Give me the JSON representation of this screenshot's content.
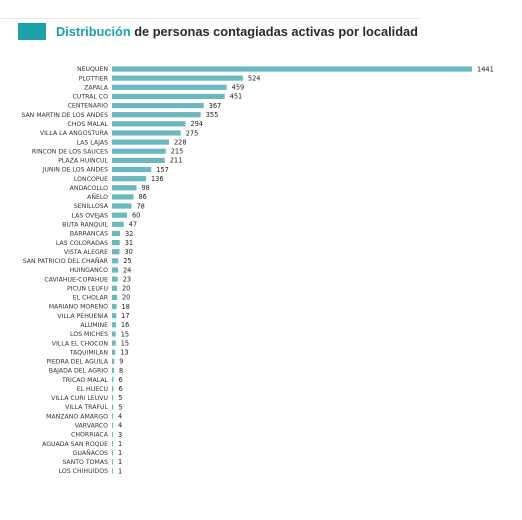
{
  "header": {
    "title_highlight": "Distribución",
    "title_rest": " de personas contagiadas activas por localidad"
  },
  "colors": {
    "accent": "#1ba1a7",
    "bar": "#6bb9be",
    "label": "#333333",
    "value": "#222222",
    "title_text": "#2b2b2b"
  },
  "chart_data": {
    "type": "bar",
    "orientation": "horizontal",
    "title": "Distribución de personas contagiadas activas por localidad",
    "xlabel": "",
    "ylabel": "",
    "grid": false,
    "legend": "none",
    "xlim": [
      0,
      1441
    ],
    "categories": [
      "NEUQUEN",
      "PLOTTIER",
      "ZAPALA",
      "CUTRAL CO",
      "CENTENARIO",
      "SAN MARTIN DE LOS ANDES",
      "CHOS MALAL",
      "VILLA LA ANGOSTURA",
      "LAS LAJAS",
      "RINCON DE LOS SAUCES",
      "PLAZA HUINCUL",
      "JUNIN DE LOS ANDES",
      "LONCOPUE",
      "ANDACOLLO",
      "AÑELO",
      "SENILLOSA",
      "LAS OVEJAS",
      "BUTA RANQUIL",
      "BARRANCAS",
      "LAS COLORADAS",
      "VISTA ALEGRE",
      "SAN PATRICIO DEL CHAÑAR",
      "HUINGANCO",
      "CAVIAHUE-COPAHUE",
      "PICUN LEUFU",
      "EL CHOLAR",
      "MARIANO MORENO",
      "VILLA PEHUENIA",
      "ALUMINE",
      "LOS MICHES",
      "VILLA EL CHOCON",
      "TAQUIMILAN",
      "PIEDRA DEL AGUILA",
      "BAJADA DEL AGRIO",
      "TRICAO MALAL",
      "EL HUECU",
      "VILLA CURI LEUVU",
      "VILLA TRAFUL",
      "MANZANO AMARGO",
      "VARVARCO",
      "CHORRIACA",
      "AGUADA SAN ROQUE",
      "GUAÑACOS",
      "SANTO TOMAS",
      "LOS CHIHUIDOS"
    ],
    "values": [
      1441,
      524,
      459,
      451,
      367,
      355,
      294,
      275,
      228,
      215,
      211,
      157,
      136,
      98,
      86,
      78,
      60,
      47,
      32,
      31,
      30,
      25,
      24,
      23,
      20,
      20,
      18,
      17,
      16,
      15,
      15,
      13,
      9,
      8,
      6,
      6,
      5,
      5,
      4,
      4,
      3,
      1,
      1,
      1,
      1
    ]
  }
}
